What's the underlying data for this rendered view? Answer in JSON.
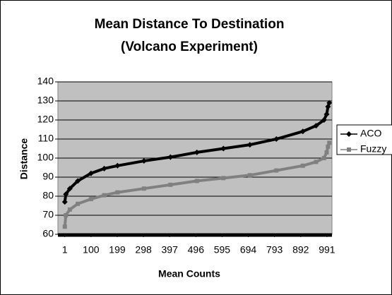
{
  "chart_data": {
    "type": "line",
    "title": [
      "Mean Distance To Destination",
      "(Volcano Experiment)"
    ],
    "x_label": "Mean Counts",
    "y_label": "Distance",
    "x": [
      1,
      5,
      20,
      50,
      100,
      150,
      200,
      300,
      400,
      500,
      600,
      700,
      800,
      900,
      950,
      980,
      990,
      995,
      1000
    ],
    "series": [
      {
        "name": "ACO",
        "color": "#000000",
        "marker": "diamond",
        "values": [
          77,
          81,
          84,
          88,
          92,
          94.5,
          96,
          98.5,
          100.5,
          103,
          105,
          107,
          110,
          114,
          117,
          120,
          123,
          127,
          129
        ]
      },
      {
        "name": "Fuzzy",
        "color": "#808080",
        "marker": "square",
        "values": [
          64,
          70,
          73,
          76,
          78.5,
          80.5,
          82,
          84,
          86,
          88,
          89.5,
          91,
          93.5,
          96,
          98,
          100,
          103,
          106,
          108
        ]
      }
    ],
    "xlim": [
      -25,
      1010
    ],
    "xticks": [
      1,
      100,
      199,
      298,
      397,
      496,
      595,
      694,
      793,
      892,
      991
    ],
    "ylim": [
      60,
      140
    ],
    "yticks": [
      60,
      70,
      80,
      90,
      100,
      110,
      120,
      130,
      140
    ],
    "grid": true,
    "legend": "right"
  }
}
